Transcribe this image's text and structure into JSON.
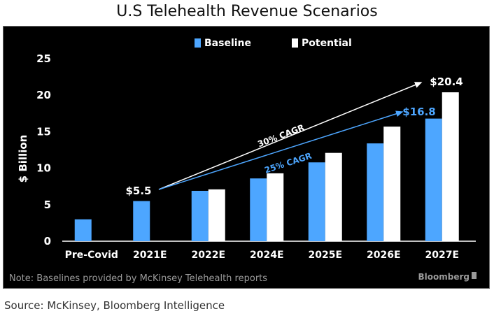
{
  "title": "U.S Telehealth Revenue Scenarios",
  "source": "Source: McKinsey, Bloomberg Intelligence",
  "chart_data": {
    "type": "bar",
    "ylabel": "$ Billion",
    "ylim": [
      0,
      25
    ],
    "yticks": [
      "0",
      "5",
      "10",
      "15",
      "20",
      "25"
    ],
    "categories": [
      "Pre-Covid",
      "2021E",
      "2022E",
      "2024E",
      "2025E",
      "2026E",
      "2027E"
    ],
    "series": [
      {
        "name": "Baseline",
        "color": "#4da6ff",
        "values": [
          3.0,
          5.5,
          6.9,
          8.6,
          10.8,
          13.4,
          16.8
        ]
      },
      {
        "name": "Potential",
        "color": "#ffffff",
        "values": [
          null,
          null,
          7.1,
          9.3,
          12.1,
          15.7,
          20.4
        ]
      }
    ],
    "grid": false,
    "legend": "top-center",
    "annotations": {
      "start_label": "$5.5",
      "end_baseline_label": "$16.8",
      "end_potential_label": "$20.4",
      "cagr_potential": "30% CAGR",
      "cagr_baseline": "25% CAGR"
    },
    "note": "Note: Baselines provided by McKinsey Telehealth reports",
    "brand": "Bloomberg"
  }
}
